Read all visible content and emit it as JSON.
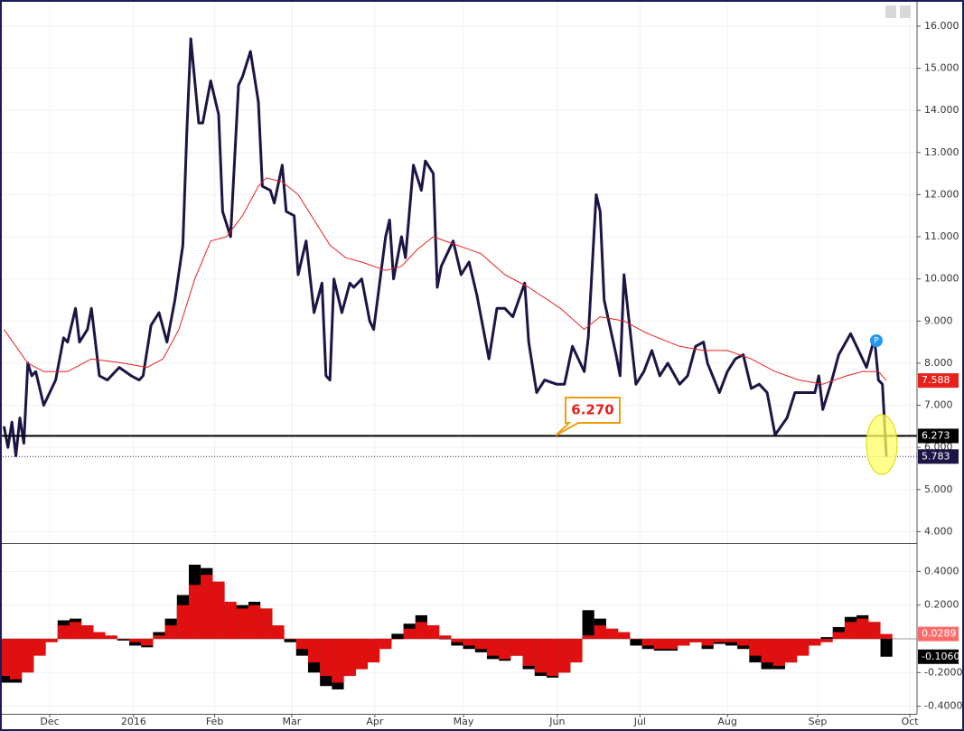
{
  "chart_data": [
    {
      "type": "line",
      "marker": "P",
      "callout": "6.270",
      "xlim": [
        -1,
        229.7
      ],
      "ylim": [
        3.73,
        16.62
      ],
      "grid": true,
      "yticks": [
        {
          "value": 4,
          "label": "4.000"
        },
        {
          "value": 5,
          "label": "5.000"
        },
        {
          "value": 6,
          "label": "6.000"
        },
        {
          "value": 7,
          "label": "7.000"
        },
        {
          "value": 8,
          "label": "8.000"
        },
        {
          "value": 9,
          "label": "9.000"
        },
        {
          "value": 10,
          "label": "10.000"
        },
        {
          "value": 11,
          "label": "11.000"
        },
        {
          "value": 12,
          "label": "12.000"
        },
        {
          "value": 13,
          "label": "13.000"
        },
        {
          "value": 14,
          "label": "14.000"
        },
        {
          "value": 15,
          "label": "15.000"
        },
        {
          "value": 16,
          "label": "16.000"
        }
      ],
      "series": [
        {
          "color": "#1c1545",
          "width": 3,
          "x": [
            0,
            1,
            2,
            3,
            4,
            5,
            6,
            7,
            8,
            10,
            13,
            15,
            16,
            18,
            19,
            21,
            22,
            24,
            26,
            29,
            32,
            34,
            35,
            37,
            39,
            41,
            43,
            45,
            46,
            47,
            49,
            50,
            52,
            54,
            55,
            57,
            59,
            60,
            62,
            64,
            65,
            67,
            68,
            70,
            71,
            73,
            74,
            76,
            78,
            80,
            81,
            82,
            83,
            85,
            87,
            88,
            90,
            92,
            93,
            96,
            97,
            98,
            100,
            101,
            103,
            105,
            106,
            108,
            109,
            110,
            113,
            115,
            117,
            119,
            122,
            124,
            126,
            128,
            131,
            132,
            134,
            136,
            139,
            141,
            143,
            146,
            147,
            149,
            150,
            151,
            154,
            155,
            156,
            159,
            161,
            163,
            165,
            167,
            170,
            172,
            174,
            176,
            177,
            180,
            182,
            184,
            186,
            188,
            190,
            192,
            194,
            197,
            199,
            201,
            204,
            205,
            206,
            208,
            210,
            213,
            215,
            217,
            219,
            220,
            221,
            222
          ],
          "values": [
            6.5,
            6.0,
            6.6,
            5.8,
            6.7,
            6.1,
            8.0,
            7.7,
            7.8,
            7.0,
            7.6,
            8.6,
            8.5,
            9.3,
            8.5,
            8.8,
            9.3,
            7.7,
            7.6,
            7.9,
            7.7,
            7.6,
            7.7,
            8.9,
            9.2,
            8.5,
            9.5,
            10.8,
            13.5,
            15.7,
            13.7,
            13.7,
            14.7,
            13.9,
            11.6,
            11.0,
            14.6,
            14.8,
            15.4,
            14.2,
            12.2,
            12.1,
            11.8,
            12.7,
            11.6,
            11.5,
            10.1,
            10.9,
            9.2,
            9.9,
            7.7,
            7.6,
            10.0,
            9.2,
            9.9,
            9.8,
            10.0,
            9.0,
            8.8,
            11.0,
            11.4,
            10.0,
            11.0,
            10.5,
            12.7,
            12.1,
            12.8,
            12.5,
            9.8,
            10.3,
            10.9,
            10.1,
            10.4,
            9.6,
            8.1,
            9.3,
            9.3,
            9.1,
            9.9,
            8.5,
            7.3,
            7.6,
            7.5,
            7.5,
            8.4,
            7.8,
            8.6,
            12.0,
            11.6,
            9.5,
            8.2,
            7.7,
            10.1,
            7.5,
            7.8,
            8.3,
            7.7,
            8.0,
            7.5,
            7.7,
            8.4,
            8.5,
            8.0,
            7.3,
            7.8,
            8.1,
            8.2,
            7.4,
            7.5,
            7.3,
            6.3,
            6.7,
            7.3,
            7.3,
            7.3,
            7.7,
            6.9,
            7.5,
            8.2,
            8.7,
            8.3,
            7.9,
            8.6,
            7.6,
            7.5,
            5.783
          ]
        },
        {
          "color": "#e8201b",
          "width": 1,
          "x": [
            0,
            6,
            10,
            16,
            22,
            30,
            36,
            40,
            44,
            48,
            52,
            56,
            60,
            64,
            66,
            70,
            74,
            78,
            82,
            86,
            90,
            96,
            100,
            104,
            108,
            114,
            120,
            126,
            132,
            140,
            146,
            150,
            156,
            162,
            170,
            176,
            182,
            188,
            194,
            200,
            206,
            212,
            216,
            220,
            222
          ],
          "values": [
            8.8,
            8.0,
            7.8,
            7.8,
            8.1,
            8.0,
            7.9,
            8.1,
            8.8,
            10.0,
            10.9,
            11.0,
            11.5,
            12.2,
            12.4,
            12.3,
            12.0,
            11.4,
            10.8,
            10.5,
            10.4,
            10.2,
            10.3,
            10.7,
            11.0,
            10.8,
            10.6,
            10.1,
            9.8,
            9.3,
            8.8,
            9.1,
            9.0,
            8.7,
            8.4,
            8.3,
            8.3,
            8.1,
            7.8,
            7.6,
            7.5,
            7.7,
            7.8,
            7.8,
            7.588
          ]
        }
      ],
      "price_labels": [
        {
          "value": 7.588,
          "color": "#e8201b",
          "line": "none"
        },
        {
          "value": 6.273,
          "color": "#000000",
          "line": "solid"
        },
        {
          "value": 5.783,
          "color": "#1c1545",
          "line": "dotted"
        }
      ]
    },
    {
      "type": "bar",
      "xlim": [
        -1,
        229.7
      ],
      "ylim": [
        -0.445,
        0.563
      ],
      "grid": true,
      "yticks": [
        {
          "value": 0.4,
          "label": "0.4000"
        },
        {
          "value": 0.2,
          "label": "0.2000"
        },
        {
          "value": -0.2,
          "label": "-0.2000"
        },
        {
          "value": -0.4,
          "label": "-0.4000"
        }
      ],
      "xticks": [
        {
          "value": 11.5,
          "label": "Dec"
        },
        {
          "value": 32.6,
          "label": "2016"
        },
        {
          "value": 53,
          "label": "Feb"
        },
        {
          "value": 72.4,
          "label": "Mar"
        },
        {
          "value": 93.3,
          "label": "Apr"
        },
        {
          "value": 115.6,
          "label": "May"
        },
        {
          "value": 139.2,
          "label": "Jun"
        },
        {
          "value": 160,
          "label": "Jul"
        },
        {
          "value": 182,
          "label": "Aug"
        },
        {
          "value": 204.7,
          "label": "Sep"
        },
        {
          "value": 227.9,
          "label": "Oct"
        }
      ],
      "x": [
        0,
        3,
        6,
        9,
        12,
        15,
        18,
        21,
        24,
        27,
        30,
        33,
        36,
        39,
        42,
        45,
        48,
        51,
        54,
        57,
        60,
        63,
        66,
        69,
        72,
        75,
        78,
        81,
        84,
        87,
        90,
        93,
        96,
        99,
        102,
        105,
        108,
        111,
        114,
        117,
        120,
        123,
        126,
        129,
        132,
        135,
        138,
        141,
        144,
        147,
        150,
        153,
        156,
        159,
        162,
        165,
        168,
        171,
        174,
        177,
        180,
        183,
        186,
        189,
        192,
        195,
        198,
        201,
        204,
        207,
        210,
        213,
        216,
        219,
        222
      ],
      "series": [
        {
          "color": "#000000",
          "values": [
            -0.26,
            -0.26,
            -0.18,
            -0.08,
            0,
            0.11,
            0.12,
            0.08,
            0.03,
            0.01,
            -0.01,
            -0.04,
            -0.05,
            0.04,
            0.12,
            0.26,
            0.44,
            0.42,
            0.32,
            0.2,
            0.2,
            0.22,
            0.18,
            0.06,
            -0.02,
            -0.1,
            -0.2,
            -0.28,
            -0.3,
            -0.22,
            -0.18,
            -0.12,
            -0.03,
            0.03,
            0.09,
            0.14,
            0.08,
            0,
            -0.04,
            -0.06,
            -0.08,
            -0.12,
            -0.13,
            -0.1,
            -0.18,
            -0.22,
            -0.23,
            -0.2,
            -0.1,
            0.17,
            0.12,
            0.06,
            0.02,
            -0.04,
            -0.06,
            -0.07,
            -0.07,
            -0.04,
            -0.02,
            -0.06,
            -0.03,
            -0.04,
            -0.06,
            -0.14,
            -0.18,
            -0.18,
            -0.14,
            -0.09,
            -0.03,
            0.01,
            0.07,
            0.13,
            0.14,
            0.1,
            -0.106
          ]
        },
        {
          "color": "#e01010",
          "values": [
            -0.22,
            -0.24,
            -0.2,
            -0.1,
            -0.02,
            0.08,
            0.1,
            0.08,
            0.04,
            0.02,
            0,
            -0.02,
            -0.04,
            0.02,
            0.08,
            0.2,
            0.32,
            0.38,
            0.34,
            0.22,
            0.18,
            0.2,
            0.18,
            0.08,
            0,
            -0.06,
            -0.14,
            -0.22,
            -0.26,
            -0.22,
            -0.18,
            -0.14,
            -0.06,
            0,
            0.06,
            0.1,
            0.08,
            0.02,
            -0.02,
            -0.04,
            -0.06,
            -0.1,
            -0.12,
            -0.1,
            -0.16,
            -0.2,
            -0.22,
            -0.2,
            -0.14,
            0.02,
            0.08,
            0.06,
            0.04,
            0,
            -0.04,
            -0.06,
            -0.06,
            -0.04,
            -0.02,
            -0.04,
            -0.02,
            -0.02,
            -0.04,
            -0.1,
            -0.14,
            -0.16,
            -0.14,
            -0.1,
            -0.04,
            -0.02,
            0.04,
            0.1,
            0.12,
            0.1,
            0.0289
          ]
        }
      ],
      "price_labels": [
        {
          "value": 0.0289,
          "label": "0.0289",
          "color": "#ff6b6b"
        },
        {
          "value": -0.106,
          "label": "-0.1060",
          "color": "#000000"
        }
      ]
    }
  ]
}
